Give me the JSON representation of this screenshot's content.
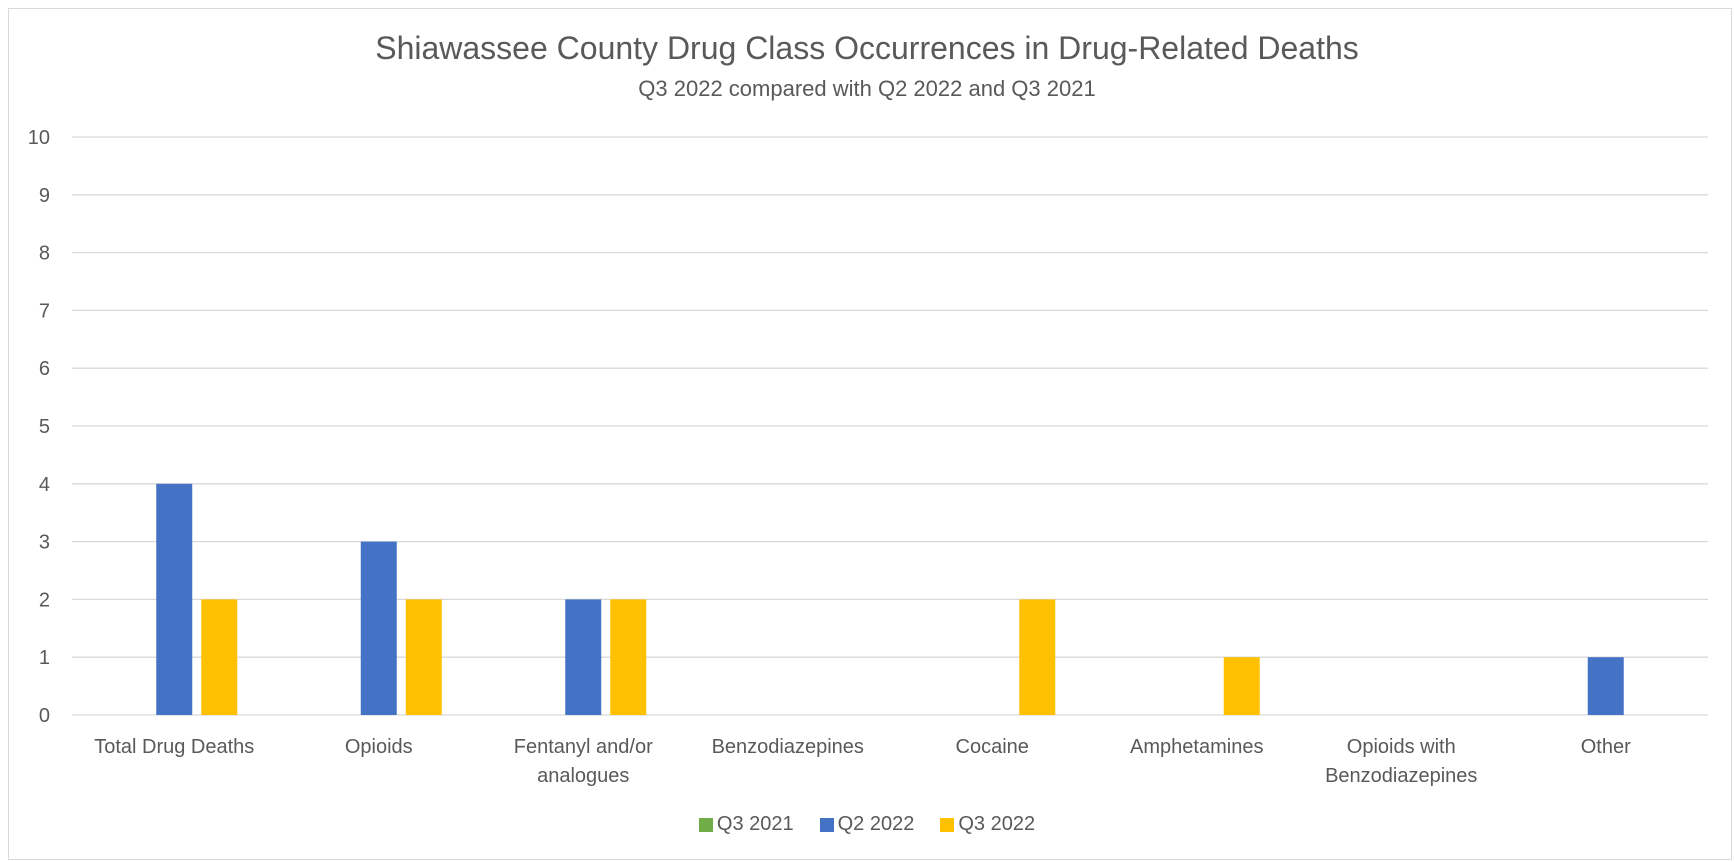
{
  "chart_data": {
    "type": "bar",
    "title": "Shiawassee County Drug Class Occurrences in Drug-Related Deaths",
    "subtitle": "Q3 2022 compared with Q2 2022 and Q3 2021",
    "categories": [
      [
        "Total Drug Deaths"
      ],
      [
        "Opioids"
      ],
      [
        "Fentanyl and/or",
        "analogues"
      ],
      [
        "Benzodiazepines"
      ],
      [
        "Cocaine"
      ],
      [
        "Amphetamines"
      ],
      [
        "Opioids with",
        "Benzodiazepines"
      ],
      [
        "Other"
      ]
    ],
    "series": [
      {
        "name": "Q3 2021",
        "color": "#70ad47",
        "values": [
          0,
          0,
          0,
          0,
          0,
          0,
          0,
          0
        ]
      },
      {
        "name": "Q2 2022",
        "color": "#4472c4",
        "values": [
          4,
          3,
          2,
          0,
          0,
          0,
          0,
          1
        ]
      },
      {
        "name": "Q3 2022",
        "color": "#ffc000",
        "values": [
          2,
          2,
          2,
          0,
          2,
          1,
          0,
          0
        ]
      }
    ],
    "ylim": [
      0,
      10
    ],
    "yticks": [
      0,
      1,
      2,
      3,
      4,
      5,
      6,
      7,
      8,
      9,
      10
    ],
    "grid": true,
    "legend_position": "bottom"
  }
}
